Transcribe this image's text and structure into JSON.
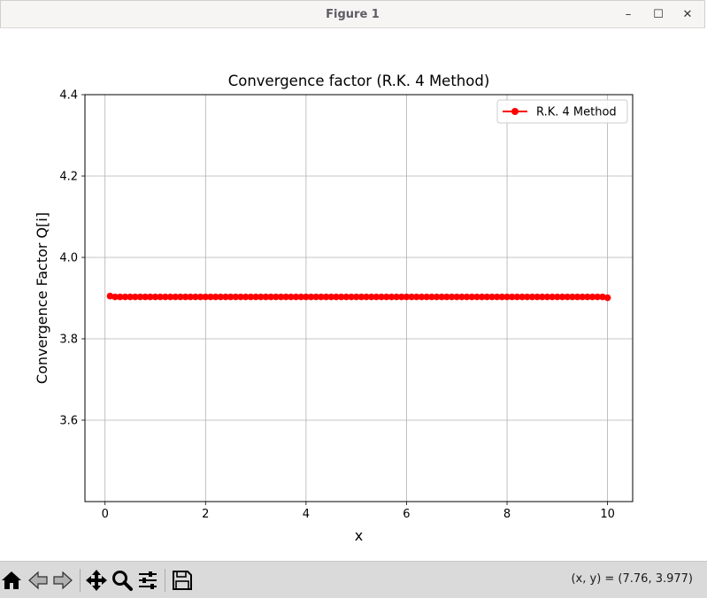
{
  "window": {
    "title": "Figure 1",
    "controls": {
      "minimize": "–",
      "maximize": "☐",
      "close": "✕"
    }
  },
  "toolbar": {
    "buttons": [
      {
        "name": "home-button",
        "icon": "home-icon"
      },
      {
        "name": "back-button",
        "icon": "arrow-left-icon"
      },
      {
        "name": "forward-button",
        "icon": "arrow-right-icon"
      },
      {
        "name": "pan-button",
        "icon": "move-icon"
      },
      {
        "name": "zoom-button",
        "icon": "magnifier-icon"
      },
      {
        "name": "configure-subplots-button",
        "icon": "sliders-icon"
      },
      {
        "name": "save-button",
        "icon": "floppy-disk-icon"
      }
    ],
    "coordinates": "(x, y) = (7.76, 3.977)"
  },
  "colors": {
    "series": "#ff0000",
    "grid": "#b0b0b0",
    "axes": "#000000"
  },
  "chart_data": {
    "type": "line",
    "title": "Convergence factor (R.K. 4 Method)",
    "xlabel": "x",
    "ylabel": "Convergence Factor Q[i]",
    "xlim": [
      -0.4,
      10.5
    ],
    "ylim": [
      3.4,
      4.4
    ],
    "xticks": [
      0,
      2,
      4,
      6,
      8,
      10
    ],
    "xtick_labels": [
      "0",
      "2",
      "4",
      "6",
      "8",
      "10"
    ],
    "yticks": [
      3.6,
      3.8,
      4.0,
      4.2,
      4.4
    ],
    "ytick_labels": [
      "3.6",
      "3.8",
      "4.0",
      "4.2",
      "4.4"
    ],
    "grid": true,
    "legend_position": "top-right",
    "series": [
      {
        "name": "R.K. 4 Method",
        "color": "#ff0000",
        "marker": "circle",
        "x": [
          0.1,
          0.2,
          0.3,
          0.4,
          0.5,
          0.6,
          0.7,
          0.8,
          0.9,
          1.0,
          1.1,
          1.2,
          1.3,
          1.4,
          1.5,
          1.6,
          1.7,
          1.8,
          1.9,
          2.0,
          2.1,
          2.2,
          2.3,
          2.4,
          2.5,
          2.6,
          2.7,
          2.8,
          2.9,
          3.0,
          3.1,
          3.2,
          3.3,
          3.4,
          3.5,
          3.6,
          3.7,
          3.8,
          3.9,
          4.0,
          4.1,
          4.2,
          4.3,
          4.4,
          4.5,
          4.6,
          4.7,
          4.8,
          4.9,
          5.0,
          5.1,
          5.2,
          5.3,
          5.4,
          5.5,
          5.6,
          5.7,
          5.8,
          5.9,
          6.0,
          6.1,
          6.2,
          6.3,
          6.4,
          6.5,
          6.6,
          6.7,
          6.8,
          6.9,
          7.0,
          7.1,
          7.2,
          7.3,
          7.4,
          7.5,
          7.6,
          7.7,
          7.8,
          7.9,
          8.0,
          8.1,
          8.2,
          8.3,
          8.4,
          8.5,
          8.6,
          8.7,
          8.8,
          8.9,
          9.0,
          9.1,
          9.2,
          9.3,
          9.4,
          9.5,
          9.6,
          9.7,
          9.8,
          9.9,
          10.0
        ],
        "y": [
          3.905,
          3.903,
          3.903,
          3.903,
          3.903,
          3.903,
          3.903,
          3.903,
          3.903,
          3.903,
          3.903,
          3.903,
          3.903,
          3.903,
          3.903,
          3.903,
          3.903,
          3.903,
          3.903,
          3.903,
          3.903,
          3.903,
          3.903,
          3.903,
          3.903,
          3.903,
          3.903,
          3.903,
          3.903,
          3.903,
          3.903,
          3.903,
          3.903,
          3.903,
          3.903,
          3.903,
          3.903,
          3.903,
          3.903,
          3.903,
          3.903,
          3.903,
          3.903,
          3.903,
          3.903,
          3.903,
          3.903,
          3.903,
          3.903,
          3.903,
          3.903,
          3.903,
          3.903,
          3.903,
          3.903,
          3.903,
          3.903,
          3.903,
          3.903,
          3.903,
          3.903,
          3.903,
          3.903,
          3.903,
          3.903,
          3.903,
          3.903,
          3.903,
          3.903,
          3.903,
          3.903,
          3.903,
          3.903,
          3.903,
          3.903,
          3.903,
          3.903,
          3.903,
          3.903,
          3.903,
          3.903,
          3.903,
          3.903,
          3.903,
          3.903,
          3.903,
          3.903,
          3.903,
          3.903,
          3.903,
          3.903,
          3.903,
          3.903,
          3.903,
          3.903,
          3.903,
          3.903,
          3.903,
          3.903,
          3.901
        ]
      }
    ]
  }
}
